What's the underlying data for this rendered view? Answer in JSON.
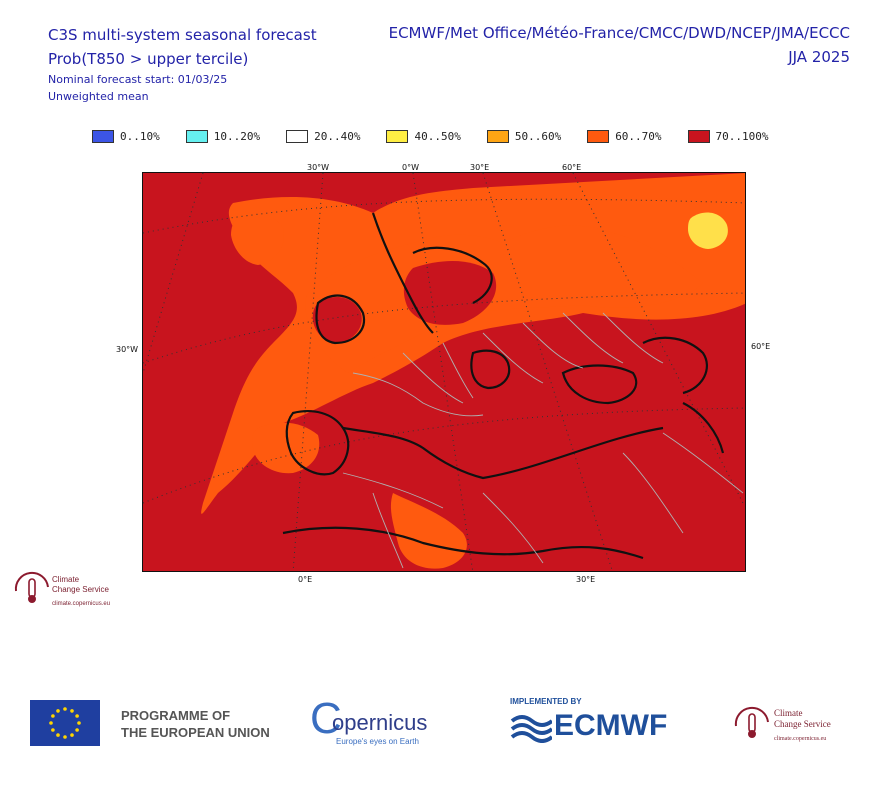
{
  "header": {
    "title": "C3S multi-system seasonal forecast",
    "subtitle": "Prob(T850 > upper tercile)",
    "forecast_start": "Nominal forecast start: 01/03/25",
    "mean_type": "Unweighted mean",
    "centres": "ECMWF/Met Office/Météo-France/CMCC/DWD/NCEP/JMA/ECCC",
    "season": "JJA 2025"
  },
  "legend": [
    {
      "label": "0..10%",
      "color": "#3c55e6"
    },
    {
      "label": "10..20%",
      "color": "#66f0f0"
    },
    {
      "label": "20..40%",
      "color": "#ffffff"
    },
    {
      "label": "40..50%",
      "color": "#ffee44"
    },
    {
      "label": "50..60%",
      "color": "#ffa514"
    },
    {
      "label": "60..70%",
      "color": "#ff5a0f"
    },
    {
      "label": "70..100%",
      "color": "#c8141e"
    }
  ],
  "map": {
    "top_labels": [
      "30°W",
      "0°W",
      "30°E",
      "60°E"
    ],
    "left_label": "30°W",
    "right_label": "60°E",
    "bottom_labels": [
      "0°E",
      "30°E"
    ],
    "colors": {
      "c70": "#c8141e",
      "c60": "#ff5a0f",
      "c50": "#ffa514",
      "c40": "#ffe04a",
      "border": "#b0b0b0"
    }
  },
  "ccs_small": {
    "line1": "Climate",
    "line2": "Change Service",
    "url": "climate.copernicus.eu"
  },
  "footer": {
    "eu_line1": "PROGRAMME OF",
    "eu_line2": "THE EUROPEAN UNION",
    "copernicus": "opernicus",
    "copernicus_c": "C",
    "copernicus_tag": "Europe's eyes on Earth",
    "ecmwf_implemented": "IMPLEMENTED BY",
    "ecmwf": "ECMWF",
    "ccs_line1": "Climate",
    "ccs_line2": "Change Service",
    "ccs_url": "climate.copernicus.eu"
  }
}
